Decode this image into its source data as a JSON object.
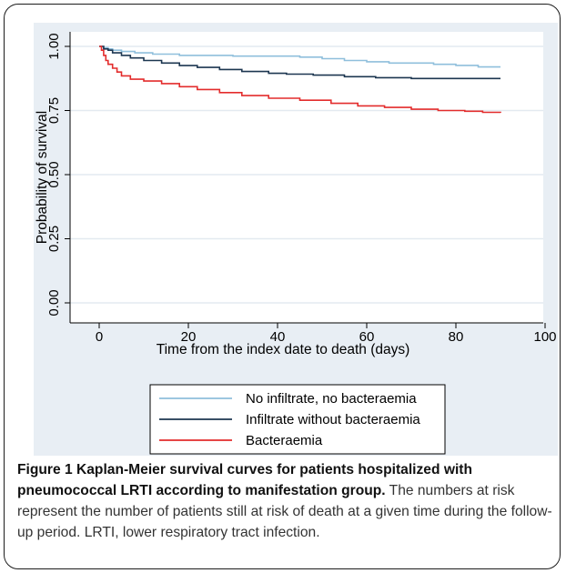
{
  "caption": {
    "label": "Figure 1",
    "title": "Kaplan-Meier survival curves for patients hospitalized with pneumococcal LRTI according to manifestation group.",
    "text": "The numbers at risk represent the number of patients still at risk of death at a given time during the follow-up period. LRTI, lower respiratory tract infection."
  },
  "chart_data": {
    "type": "line",
    "step": true,
    "xlabel": "Time from the index date to death (days)",
    "ylabel": "Probability of survival",
    "xlim": [
      0,
      100
    ],
    "ylim": [
      0,
      1
    ],
    "xticks": [
      "0",
      "20",
      "40",
      "60",
      "80",
      "100"
    ],
    "yticks": [
      "0.00",
      "0.25",
      "0.50",
      "0.75",
      "1.00"
    ],
    "grid": true,
    "legend_position": "bottom-center",
    "series": [
      {
        "name": "No infiltrate, no bacteraemia",
        "color": "#8fbfdc",
        "points": [
          [
            0,
            1.0
          ],
          [
            1,
            0.995
          ],
          [
            2,
            0.99
          ],
          [
            3,
            0.985
          ],
          [
            5,
            0.98
          ],
          [
            8,
            0.975
          ],
          [
            12,
            0.97
          ],
          [
            18,
            0.965
          ],
          [
            30,
            0.962
          ],
          [
            45,
            0.958
          ],
          [
            50,
            0.952
          ],
          [
            55,
            0.945
          ],
          [
            60,
            0.94
          ],
          [
            65,
            0.935
          ],
          [
            75,
            0.93
          ],
          [
            80,
            0.926
          ],
          [
            85,
            0.92
          ],
          [
            90,
            0.92
          ]
        ]
      },
      {
        "name": "Infiltrate without bacteraemia",
        "color": "#1c3650",
        "points": [
          [
            0,
            1.0
          ],
          [
            1,
            0.99
          ],
          [
            2,
            0.985
          ],
          [
            3,
            0.975
          ],
          [
            5,
            0.965
          ],
          [
            7,
            0.955
          ],
          [
            10,
            0.945
          ],
          [
            14,
            0.935
          ],
          [
            18,
            0.925
          ],
          [
            22,
            0.918
          ],
          [
            27,
            0.91
          ],
          [
            32,
            0.902
          ],
          [
            38,
            0.895
          ],
          [
            42,
            0.892
          ],
          [
            48,
            0.888
          ],
          [
            55,
            0.882
          ],
          [
            62,
            0.878
          ],
          [
            70,
            0.875
          ],
          [
            90,
            0.875
          ]
        ]
      },
      {
        "name": "Bacteraemia",
        "color": "#e32c2c",
        "points": [
          [
            0,
            1.0
          ],
          [
            0.5,
            0.985
          ],
          [
            1,
            0.965
          ],
          [
            1.5,
            0.945
          ],
          [
            2,
            0.93
          ],
          [
            3,
            0.915
          ],
          [
            4,
            0.9
          ],
          [
            5,
            0.885
          ],
          [
            7,
            0.872
          ],
          [
            10,
            0.865
          ],
          [
            14,
            0.855
          ],
          [
            18,
            0.843
          ],
          [
            22,
            0.832
          ],
          [
            27,
            0.82
          ],
          [
            32,
            0.808
          ],
          [
            38,
            0.798
          ],
          [
            45,
            0.79
          ],
          [
            52,
            0.778
          ],
          [
            58,
            0.768
          ],
          [
            64,
            0.762
          ],
          [
            70,
            0.755
          ],
          [
            76,
            0.75
          ],
          [
            82,
            0.747
          ],
          [
            86,
            0.743
          ],
          [
            90,
            0.741
          ]
        ]
      }
    ]
  }
}
